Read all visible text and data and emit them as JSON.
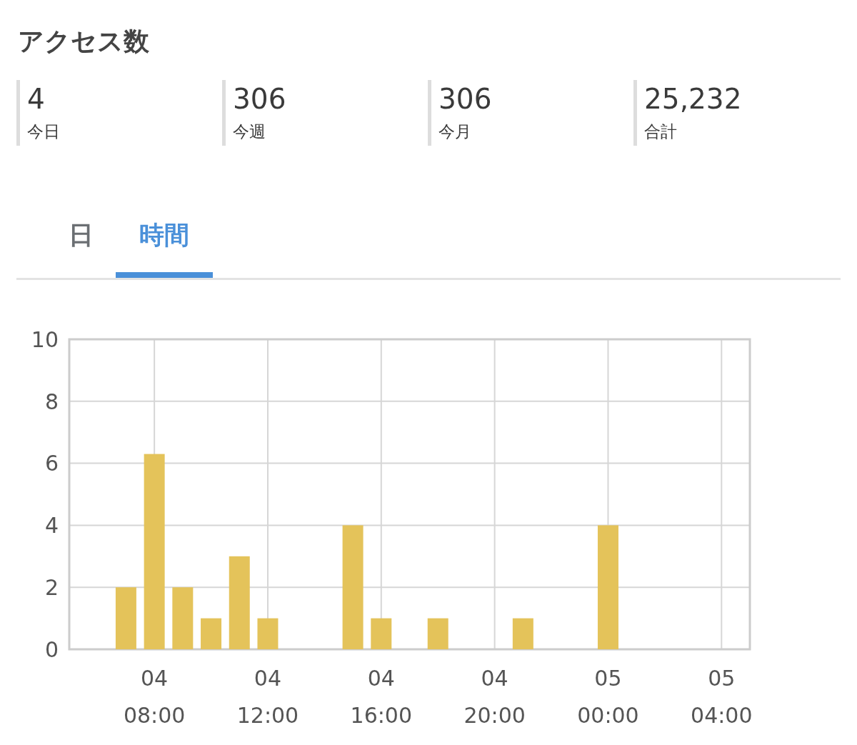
{
  "chart_data": [
    {
      "type": "other",
      "title": "アクセス数",
      "annotations": [
        "4",
        "今日",
        "306",
        "今週",
        "306",
        "今月",
        "25,232",
        "合計"
      ]
    },
    {
      "type": "bar",
      "annotations": [
        "日",
        "時間"
      ],
      "categories": [
        null,
        null,
        null,
        "04 08:00",
        null,
        null,
        null,
        "04 12:00",
        null,
        null,
        null,
        "04 16:00",
        null,
        null,
        null,
        "04 20:00",
        null,
        null,
        null,
        "05 00:00",
        null,
        null,
        null,
        "05 04:00"
      ],
      "values": [
        0,
        0,
        2,
        6.3,
        2,
        1,
        3,
        1,
        0,
        0,
        4,
        1,
        0,
        1,
        0,
        0,
        1,
        0,
        0,
        4,
        0,
        0,
        0,
        0
      ],
      "color": "#e4c35a",
      "ylim": [
        0,
        10
      ],
      "yticks": [
        0,
        2,
        4,
        6,
        8,
        10
      ],
      "grid": true
    }
  ]
}
